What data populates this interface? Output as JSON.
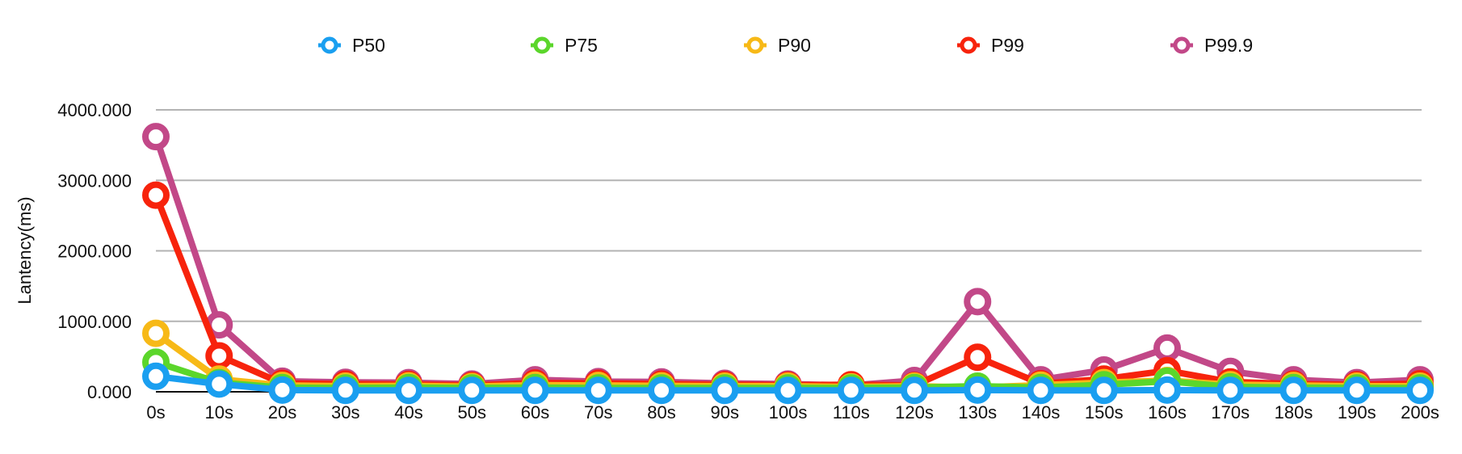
{
  "chart_data": {
    "type": "line",
    "title": "",
    "xlabel": "",
    "ylabel": "Lantency(ms)",
    "x": [
      "0s",
      "10s",
      "20s",
      "30s",
      "40s",
      "50s",
      "60s",
      "70s",
      "80s",
      "90s",
      "100s",
      "110s",
      "120s",
      "130s",
      "140s",
      "150s",
      "160s",
      "170s",
      "180s",
      "190s",
      "200s"
    ],
    "yticks": [
      "0.000",
      "1000.000",
      "2000.000",
      "3000.000",
      "4000.000"
    ],
    "ylim": [
      0,
      4000
    ],
    "grid": true,
    "legend_position": "top",
    "series": [
      {
        "name": "P50",
        "color": "#1a9ff0",
        "values": [
          220,
          110,
          25,
          20,
          20,
          20,
          20,
          20,
          20,
          20,
          20,
          20,
          20,
          25,
          20,
          20,
          25,
          20,
          20,
          20,
          20
        ]
      },
      {
        "name": "P75",
        "color": "#5bd62b",
        "values": [
          420,
          130,
          60,
          55,
          60,
          55,
          60,
          55,
          55,
          55,
          55,
          55,
          60,
          80,
          60,
          100,
          150,
          70,
          60,
          55,
          55
        ]
      },
      {
        "name": "P90",
        "color": "#f7b917",
        "values": [
          830,
          180,
          90,
          80,
          85,
          75,
          95,
          90,
          85,
          80,
          80,
          70,
          80,
          60,
          95,
          130,
          160,
          100,
          90,
          80,
          80
        ]
      },
      {
        "name": "P99",
        "color": "#f7230c",
        "values": [
          2790,
          510,
          120,
          110,
          105,
          90,
          125,
          120,
          110,
          100,
          95,
          100,
          90,
          490,
          115,
          180,
          300,
          140,
          110,
          100,
          115
        ]
      },
      {
        "name": "P99.9",
        "color": "#c24888",
        "values": [
          3620,
          950,
          150,
          135,
          130,
          110,
          170,
          145,
          140,
          120,
          110,
          90,
          160,
          1280,
          170,
          310,
          620,
          290,
          170,
          130,
          170
        ]
      }
    ]
  }
}
